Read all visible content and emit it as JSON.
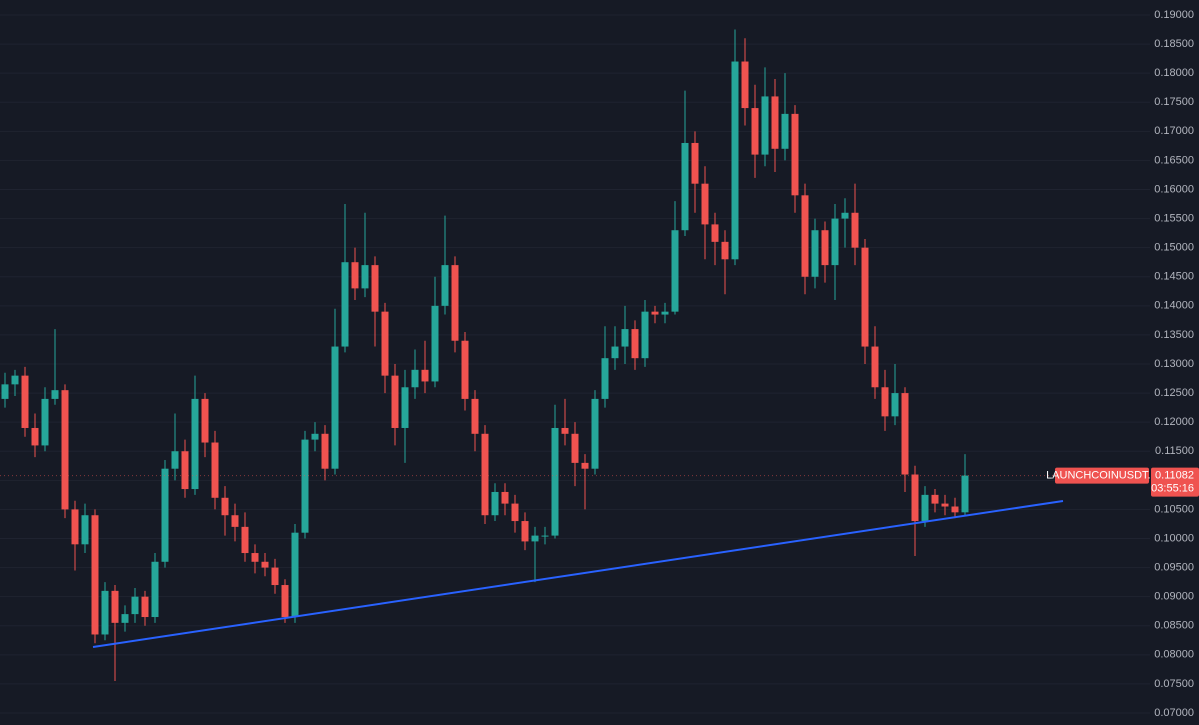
{
  "chart_data": {
    "type": "candlestick",
    "symbol": "LAUNCHCOINUSDT.P",
    "countdown": "03:55:16",
    "up_color": "#26a69a",
    "down_color": "#ef5350",
    "grid": true,
    "open": [
      0.124,
      0.1265,
      0.128,
      0.119,
      0.116,
      0.124,
      0.1255,
      0.105,
      0.099,
      0.104,
      0.0835,
      0.091,
      0.0855,
      0.087,
      0.09,
      0.0865,
      0.096,
      0.112,
      0.115,
      0.1085,
      0.124,
      0.1165,
      0.107,
      0.104,
      0.102,
      0.0975,
      0.096,
      0.095,
      0.092,
      0.0865,
      0.101,
      0.117,
      0.118,
      0.112,
      0.133,
      0.1475,
      0.143,
      0.147,
      0.139,
      0.128,
      0.119,
      0.126,
      0.129,
      0.127,
      0.14,
      0.147,
      0.134,
      0.124,
      0.118,
      0.104,
      0.108,
      0.106,
      0.103,
      0.0995,
      0.1005,
      0.1005,
      0.119,
      0.118,
      0.113,
      0.112,
      0.124,
      0.131,
      0.133,
      0.136,
      0.131,
      0.139,
      0.1385,
      0.139,
      0.153,
      0.168,
      0.161,
      0.154,
      0.151,
      0.148,
      0.182,
      0.174,
      0.166,
      0.176,
      0.167,
      0.173,
      0.159,
      0.145,
      0.153,
      0.147,
      0.155,
      0.156,
      0.15,
      0.133,
      0.126,
      0.121,
      0.125,
      0.111,
      0.103,
      0.1075,
      0.106,
      0.1055,
      0.1045
    ],
    "high": [
      0.1285,
      0.129,
      0.1295,
      0.1215,
      0.126,
      0.136,
      0.1265,
      0.1065,
      0.106,
      0.105,
      0.0925,
      0.092,
      0.0885,
      0.0915,
      0.091,
      0.0975,
      0.1135,
      0.1215,
      0.117,
      0.128,
      0.125,
      0.1185,
      0.109,
      0.106,
      0.1045,
      0.099,
      0.0975,
      0.0965,
      0.093,
      0.1025,
      0.1185,
      0.12,
      0.1195,
      0.1395,
      0.1575,
      0.15,
      0.156,
      0.1485,
      0.1405,
      0.13,
      0.129,
      0.1325,
      0.134,
      0.145,
      0.1555,
      0.1485,
      0.1355,
      0.1255,
      0.1195,
      0.1095,
      0.1095,
      0.1075,
      0.1045,
      0.102,
      0.102,
      0.123,
      0.124,
      0.12,
      0.1145,
      0.1255,
      0.1365,
      0.1365,
      0.14,
      0.1375,
      0.141,
      0.14,
      0.1405,
      0.158,
      0.177,
      0.17,
      0.164,
      0.156,
      0.153,
      0.1875,
      0.186,
      0.178,
      0.181,
      0.179,
      0.18,
      0.1745,
      0.161,
      0.155,
      0.1545,
      0.1575,
      0.1585,
      0.161,
      0.1515,
      0.1365,
      0.129,
      0.13,
      0.126,
      0.1125,
      0.109,
      0.1085,
      0.1075,
      0.107,
      0.1145
    ],
    "low": [
      0.1225,
      0.1245,
      0.1175,
      0.114,
      0.115,
      0.123,
      0.1035,
      0.0945,
      0.0975,
      0.082,
      0.0825,
      0.0755,
      0.084,
      0.0855,
      0.085,
      0.0855,
      0.095,
      0.11,
      0.107,
      0.1075,
      0.114,
      0.105,
      0.1005,
      0.0995,
      0.096,
      0.094,
      0.0935,
      0.0905,
      0.0855,
      0.0855,
      0.1,
      0.115,
      0.11,
      0.111,
      0.132,
      0.141,
      0.1415,
      0.133,
      0.125,
      0.116,
      0.113,
      0.124,
      0.125,
      0.126,
      0.1385,
      0.132,
      0.122,
      0.115,
      0.1025,
      0.103,
      0.104,
      0.101,
      0.098,
      0.0925,
      0.099,
      0.1,
      0.116,
      0.109,
      0.105,
      0.111,
      0.1225,
      0.129,
      0.13,
      0.129,
      0.1295,
      0.137,
      0.137,
      0.1385,
      0.152,
      0.156,
      0.148,
      0.147,
      0.142,
      0.147,
      0.171,
      0.162,
      0.164,
      0.163,
      0.165,
      0.156,
      0.142,
      0.143,
      0.144,
      0.141,
      0.15,
      0.147,
      0.13,
      0.124,
      0.1185,
      0.1195,
      0.108,
      0.097,
      0.102,
      0.1045,
      0.104,
      0.1035,
      0.104
    ],
    "close": [
      0.1265,
      0.128,
      0.119,
      0.116,
      0.124,
      0.1255,
      0.105,
      0.099,
      0.104,
      0.0835,
      0.091,
      0.0855,
      0.087,
      0.09,
      0.0865,
      0.096,
      0.112,
      0.115,
      0.1085,
      0.124,
      0.1165,
      0.107,
      0.104,
      0.102,
      0.0975,
      0.096,
      0.095,
      0.092,
      0.0865,
      0.101,
      0.117,
      0.118,
      0.112,
      0.133,
      0.1475,
      0.143,
      0.147,
      0.139,
      0.128,
      0.119,
      0.126,
      0.129,
      0.127,
      0.14,
      0.147,
      0.134,
      0.124,
      0.118,
      0.104,
      0.108,
      0.106,
      0.103,
      0.0995,
      0.1005,
      0.1005,
      0.119,
      0.118,
      0.113,
      0.112,
      0.124,
      0.131,
      0.133,
      0.136,
      0.131,
      0.139,
      0.1385,
      0.139,
      0.153,
      0.168,
      0.161,
      0.154,
      0.151,
      0.148,
      0.182,
      0.174,
      0.166,
      0.176,
      0.167,
      0.173,
      0.159,
      0.145,
      0.153,
      0.147,
      0.155,
      0.156,
      0.15,
      0.133,
      0.126,
      0.121,
      0.125,
      0.111,
      0.103,
      0.1075,
      0.106,
      0.1055,
      0.1045,
      0.11082
    ],
    "trendline": {
      "color": "#2962ff",
      "x": [
        8.8,
        105.8
      ],
      "y": [
        0.08135,
        0.10645
      ]
    },
    "ylim": [
      0.07,
      0.19
    ],
    "yticks": [
      {
        "value": 0.07,
        "label": "0.07000"
      },
      {
        "value": 0.075,
        "label": "0.07500"
      },
      {
        "value": 0.08,
        "label": "0.08000"
      },
      {
        "value": 0.085,
        "label": "0.08500"
      },
      {
        "value": 0.09,
        "label": "0.09000"
      },
      {
        "value": 0.095,
        "label": "0.09500"
      },
      {
        "value": 0.1,
        "label": "0.10000"
      },
      {
        "value": 0.105,
        "label": "0.10500"
      },
      {
        "value": 0.11,
        "label": "0.11000"
      },
      {
        "value": 0.115,
        "label": "0.11500"
      },
      {
        "value": 0.12,
        "label": "0.12000"
      },
      {
        "value": 0.125,
        "label": "0.12500"
      },
      {
        "value": 0.13,
        "label": "0.13000"
      },
      {
        "value": 0.135,
        "label": "0.13500"
      },
      {
        "value": 0.14,
        "label": "0.14000"
      },
      {
        "value": 0.145,
        "label": "0.14500"
      },
      {
        "value": 0.15,
        "label": "0.15000"
      },
      {
        "value": 0.155,
        "label": "0.15500"
      },
      {
        "value": 0.16,
        "label": "0.16000"
      },
      {
        "value": 0.165,
        "label": "0.16500"
      },
      {
        "value": 0.17,
        "label": "0.17000"
      },
      {
        "value": 0.175,
        "label": "0.17500"
      },
      {
        "value": 0.18,
        "label": "0.18000"
      },
      {
        "value": 0.185,
        "label": "0.18500"
      },
      {
        "value": 0.19,
        "label": "0.19000"
      }
    ]
  }
}
